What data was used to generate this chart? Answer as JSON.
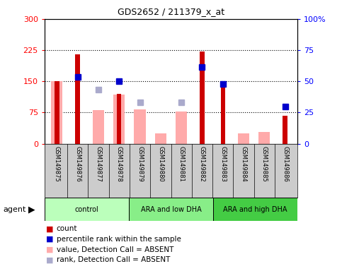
{
  "title": "GDS2652 / 211379_x_at",
  "samples": [
    "GSM149875",
    "GSM149876",
    "GSM149877",
    "GSM149878",
    "GSM149879",
    "GSM149880",
    "GSM149881",
    "GSM149882",
    "GSM149883",
    "GSM149884",
    "GSM149885",
    "GSM149886"
  ],
  "groups": [
    {
      "label": "control",
      "color": "#bbffbb",
      "start": 0,
      "end": 3
    },
    {
      "label": "ARA and low DHA",
      "color": "#88ee88",
      "start": 4,
      "end": 7
    },
    {
      "label": "ARA and high DHA",
      "color": "#44cc44",
      "start": 8,
      "end": 11
    }
  ],
  "count_present": [
    null,
    215,
    null,
    120,
    null,
    null,
    null,
    222,
    138,
    null,
    null,
    67
  ],
  "count_absent": [
    150,
    null,
    null,
    null,
    null,
    null,
    null,
    null,
    null,
    null,
    null,
    null
  ],
  "rank_present": [
    null,
    160,
    null,
    150,
    null,
    null,
    null,
    185,
    143,
    null,
    null,
    90
  ],
  "rank_absent": [
    null,
    null,
    130,
    null,
    100,
    null,
    100,
    null,
    null,
    null,
    null,
    null
  ],
  "pink_bar": [
    150,
    null,
    80,
    118,
    83,
    25,
    78,
    null,
    null,
    25,
    28,
    null
  ],
  "ylim_left": [
    0,
    300
  ],
  "ylim_right": [
    0,
    100
  ],
  "left_ticks": [
    0,
    75,
    150,
    225,
    300
  ],
  "right_ticks": [
    0,
    25,
    50,
    75,
    100
  ],
  "right_tick_labels": [
    "0",
    "25",
    "50",
    "75",
    "100%"
  ],
  "color_count": "#cc0000",
  "color_rank": "#0000cc",
  "color_pink": "#ffaaaa",
  "color_lblue": "#aaaacc",
  "color_xbg": "#cccccc",
  "legend": [
    {
      "color": "#cc0000",
      "label": "count"
    },
    {
      "color": "#0000cc",
      "label": "percentile rank within the sample"
    },
    {
      "color": "#ffaaaa",
      "label": "value, Detection Call = ABSENT"
    },
    {
      "color": "#aaaacc",
      "label": "rank, Detection Call = ABSENT"
    }
  ]
}
